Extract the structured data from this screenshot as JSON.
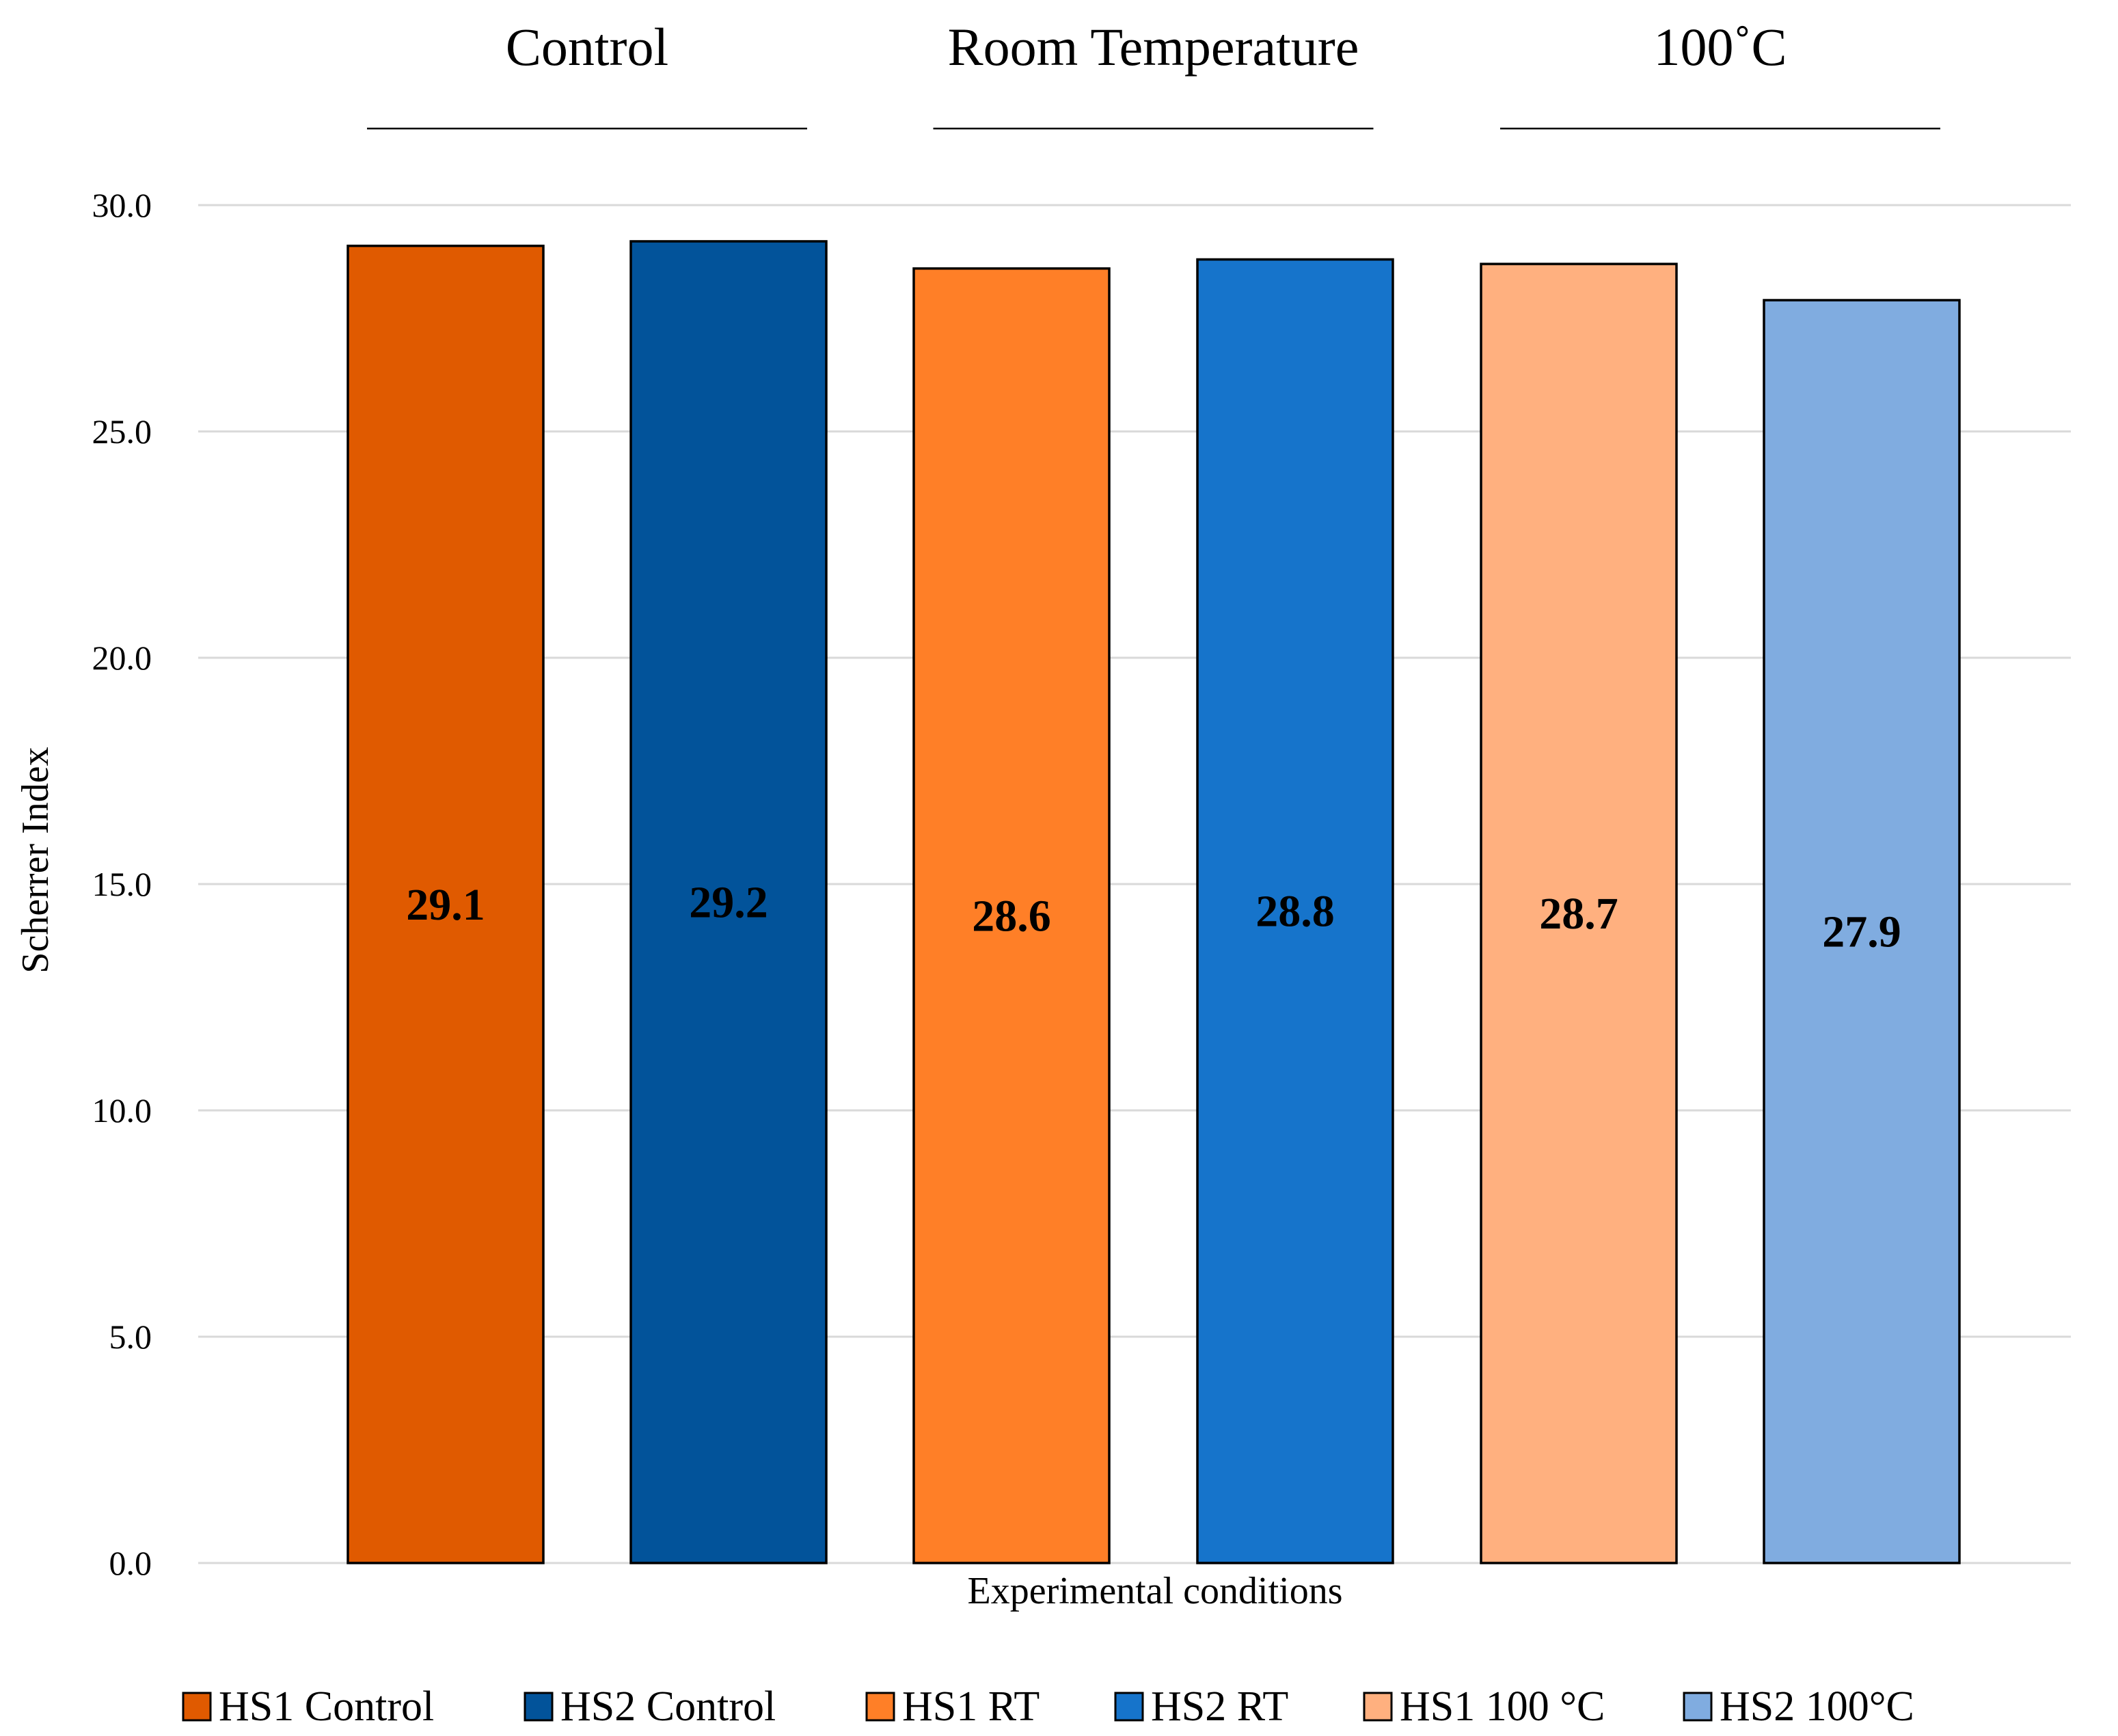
{
  "chart_data": {
    "type": "bar",
    "categories": [
      "HS1 Control",
      "HS2 Control",
      "HS1 RT",
      "HS2 RT",
      "HS1 100 °C",
      "HS2 100°C"
    ],
    "values": [
      29.1,
      29.2,
      28.6,
      28.8,
      28.7,
      27.9
    ],
    "value_labels": [
      "29.1",
      "29.2",
      "28.6",
      "28.8",
      "28.7",
      "27.9"
    ],
    "colors": [
      "#E05A00",
      "#02539A",
      "#FF7F27",
      "#1674CB",
      "#FFB07F",
      "#80ACE0"
    ],
    "groups": [
      {
        "label": "Control",
        "members": [
          0,
          1
        ]
      },
      {
        "label": "Room Temperature",
        "members": [
          2,
          3
        ]
      },
      {
        "label": "100˚C",
        "members": [
          4,
          5
        ]
      }
    ],
    "xlabel": "Experimental conditions",
    "ylabel": "Scherrer Index",
    "ylim": [
      0,
      30
    ],
    "yticks": [
      "0.0",
      "5.0",
      "10.0",
      "15.0",
      "20.0",
      "25.0",
      "30.0"
    ],
    "grid": true,
    "legend_position": "bottom",
    "legend": [
      "HS1 Control",
      "HS2 Control",
      "HS1 RT",
      "HS2 RT",
      "HS1 100 °C",
      "HS2 100°C"
    ]
  }
}
